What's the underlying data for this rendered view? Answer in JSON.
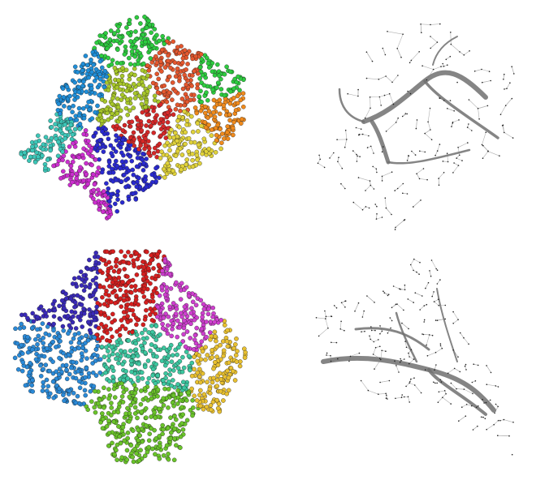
{
  "figure": {
    "panels": [
      {
        "id": "top-left",
        "description_kind": "partitioned-graph",
        "partition_colors": [
          "#2ecc40",
          "#e4572e",
          "#1f8ed8",
          "#a8c82a",
          "#3cc7b8",
          "#d62828",
          "#e0d23a",
          "#2a2ad0",
          "#cc2fcf",
          "#f08a1c"
        ]
      },
      {
        "id": "top-right",
        "description_kind": "flow-network",
        "edge_color": "#707070",
        "node_color": "#222222"
      },
      {
        "id": "bottom-left",
        "description_kind": "partitioned-graph",
        "partition_colors": [
          "#d61f1f",
          "#2a8ad8",
          "#cf3fcf",
          "#3cc7a0",
          "#e8c030",
          "#6ac42a",
          "#3a2ab8"
        ]
      },
      {
        "id": "bottom-right",
        "description_kind": "flow-network",
        "edge_color": "#707070",
        "node_color": "#222222"
      }
    ]
  }
}
